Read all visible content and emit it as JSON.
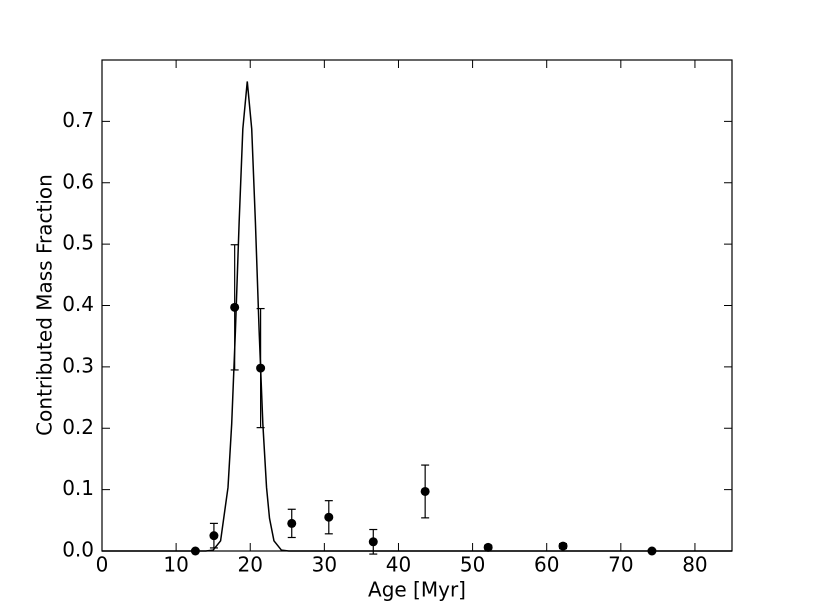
{
  "chart_data": {
    "type": "scatter",
    "xlabel": "Age [Myr]",
    "ylabel": "Contributed Mass Fraction",
    "xlim": [
      0,
      85
    ],
    "ylim": [
      0,
      0.8
    ],
    "xticks": [
      0,
      10,
      20,
      30,
      40,
      50,
      60,
      70,
      80
    ],
    "yticks": [
      {
        "value": 0,
        "label": "0.0"
      },
      0.1,
      0.2,
      0.3,
      0.4,
      0.5,
      0.6,
      0.7
    ],
    "series": [
      {
        "type": "errorbar",
        "color": "#000000",
        "x": [
          12.6,
          15.1,
          17.9,
          21.4,
          25.6,
          30.6,
          36.6,
          43.6,
          52.1,
          62.2,
          74.2
        ],
        "values": [
          0.0,
          0.025,
          0.397,
          0.298,
          0.045,
          0.055,
          0.015,
          0.097,
          0.006,
          0.008,
          0.0
        ],
        "errors": [
          0.001,
          0.02,
          0.102,
          0.097,
          0.023,
          0.027,
          0.02,
          0.043,
          0.003,
          0.004,
          0.001
        ]
      },
      {
        "type": "line",
        "color": "#000000",
        "x": [
          0,
          10,
          14,
          15,
          16,
          17,
          17.5,
          18,
          18.5,
          19,
          19.6,
          20.2,
          20.7,
          21.2,
          21.7,
          22.2,
          22.6,
          23.2,
          24.2,
          25.2,
          30,
          85
        ],
        "values": [
          0,
          0,
          0.0001,
          0.0015,
          0.0166,
          0.1035,
          0.2074,
          0.3588,
          0.5348,
          0.6877,
          0.765,
          0.6877,
          0.5348,
          0.3588,
          0.2074,
          0.1035,
          0.0533,
          0.0166,
          0.0015,
          0.0001,
          0,
          0
        ]
      }
    ]
  }
}
